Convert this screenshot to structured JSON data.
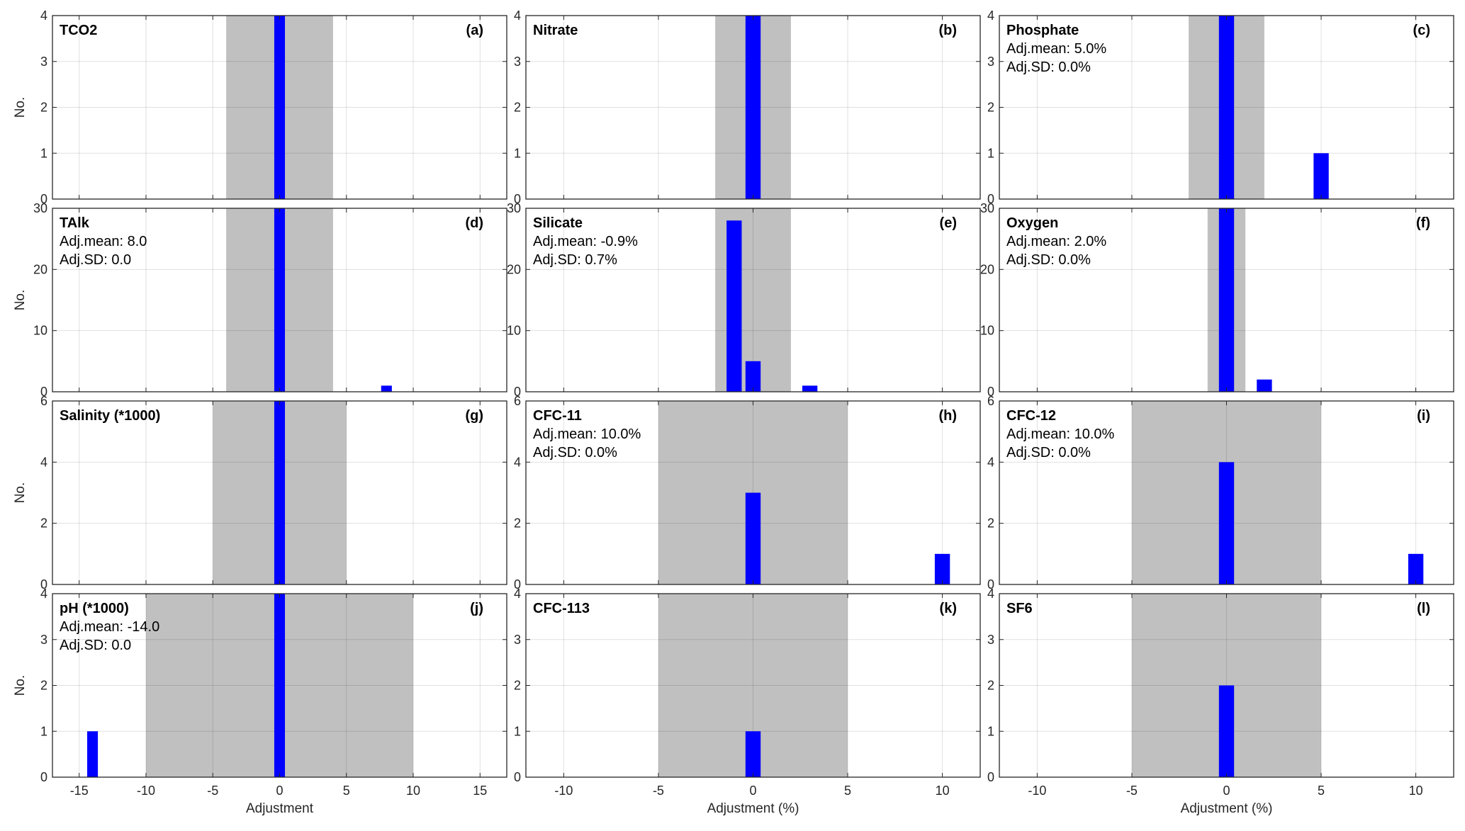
{
  "chart_data": [
    {
      "panel": "(a)",
      "title": "TCO2",
      "type": "bar",
      "xlim": [
        -17,
        17
      ],
      "xticks": [
        -15,
        -10,
        -5,
        0,
        5,
        10,
        15
      ],
      "ylim": [
        0,
        4
      ],
      "yticks": [
        0,
        1,
        2,
        3,
        4
      ],
      "ylabel": "No.",
      "xlabel": "",
      "band": [
        -4,
        4
      ],
      "bar_width": 0.8,
      "bar_color": "#0000ff",
      "band_color": "#c0c0c0",
      "x": [
        0
      ],
      "values": [
        4
      ],
      "annotations": [],
      "grid": true
    },
    {
      "panel": "(b)",
      "title": "Nitrate",
      "type": "bar",
      "xlim": [
        -12,
        12
      ],
      "xticks": [
        -10,
        -5,
        0,
        5,
        10
      ],
      "ylim": [
        0,
        4
      ],
      "yticks": [
        0,
        1,
        2,
        3,
        4
      ],
      "ylabel": "",
      "xlabel": "",
      "band": [
        -2,
        2
      ],
      "bar_width": 0.8,
      "bar_color": "#0000ff",
      "band_color": "#c0c0c0",
      "x": [
        0
      ],
      "values": [
        4
      ],
      "annotations": [],
      "grid": true
    },
    {
      "panel": "(c)",
      "title": "Phosphate",
      "type": "bar",
      "xlim": [
        -12,
        12
      ],
      "xticks": [
        -10,
        -5,
        0,
        5,
        10
      ],
      "ylim": [
        0,
        4
      ],
      "yticks": [
        0,
        1,
        2,
        3,
        4
      ],
      "ylabel": "",
      "xlabel": "",
      "band": [
        -2,
        2
      ],
      "bar_width": 0.8,
      "bar_color": "#0000ff",
      "band_color": "#c0c0c0",
      "x": [
        0,
        5
      ],
      "values": [
        4,
        1
      ],
      "annotations": [
        "Adj.mean: 5.0%",
        "Adj.SD: 0.0%"
      ],
      "grid": true
    },
    {
      "panel": "(d)",
      "title": "TAlk",
      "type": "bar",
      "xlim": [
        -17,
        17
      ],
      "xticks": [
        -15,
        -10,
        -5,
        0,
        5,
        10,
        15
      ],
      "ylim": [
        0,
        30
      ],
      "yticks": [
        0,
        10,
        20,
        30
      ],
      "ylabel": "No.",
      "xlabel": "",
      "band": [
        -4,
        4
      ],
      "bar_width": 0.8,
      "bar_color": "#0000ff",
      "band_color": "#c0c0c0",
      "x": [
        0,
        8
      ],
      "values": [
        30,
        1
      ],
      "annotations": [
        "Adj.mean: 8.0",
        "Adj.SD: 0.0"
      ],
      "grid": true
    },
    {
      "panel": "(e)",
      "title": "Silicate",
      "type": "bar",
      "xlim": [
        -12,
        12
      ],
      "xticks": [
        -10,
        -5,
        0,
        5,
        10
      ],
      "ylim": [
        0,
        30
      ],
      "yticks": [
        0,
        10,
        20,
        30
      ],
      "ylabel": "",
      "xlabel": "",
      "band": [
        -2,
        2
      ],
      "bar_width": 0.8,
      "bar_color": "#0000ff",
      "band_color": "#c0c0c0",
      "x": [
        -1,
        0,
        3
      ],
      "values": [
        28,
        5,
        1
      ],
      "annotations": [
        "Adj.mean: -0.9%",
        "Adj.SD: 0.7%"
      ],
      "grid": true
    },
    {
      "panel": "(f)",
      "title": "Oxygen",
      "type": "bar",
      "xlim": [
        -12,
        12
      ],
      "xticks": [
        -10,
        -5,
        0,
        5,
        10
      ],
      "ylim": [
        0,
        30
      ],
      "yticks": [
        0,
        10,
        20,
        30
      ],
      "ylabel": "",
      "xlabel": "",
      "band": [
        -1,
        1
      ],
      "bar_width": 0.8,
      "bar_color": "#0000ff",
      "band_color": "#c0c0c0",
      "x": [
        0,
        2
      ],
      "values": [
        30,
        2
      ],
      "annotations": [
        "Adj.mean: 2.0%",
        "Adj.SD: 0.0%"
      ],
      "grid": true
    },
    {
      "panel": "(g)",
      "title": "Salinity (*1000)",
      "type": "bar",
      "xlim": [
        -17,
        17
      ],
      "xticks": [
        -15,
        -10,
        -5,
        0,
        5,
        10,
        15
      ],
      "ylim": [
        0,
        6
      ],
      "yticks": [
        0,
        2,
        4,
        6
      ],
      "ylabel": "No.",
      "xlabel": "",
      "band": [
        -5,
        5
      ],
      "bar_width": 0.8,
      "bar_color": "#0000ff",
      "band_color": "#c0c0c0",
      "x": [
        0
      ],
      "values": [
        6
      ],
      "annotations": [],
      "grid": true
    },
    {
      "panel": "(h)",
      "title": "CFC-11",
      "type": "bar",
      "xlim": [
        -12,
        12
      ],
      "xticks": [
        -10,
        -5,
        0,
        5,
        10
      ],
      "ylim": [
        0,
        6
      ],
      "yticks": [
        0,
        2,
        4,
        6
      ],
      "ylabel": "",
      "xlabel": "",
      "band": [
        -5,
        5
      ],
      "bar_width": 0.8,
      "bar_color": "#0000ff",
      "band_color": "#c0c0c0",
      "x": [
        0,
        10
      ],
      "values": [
        3,
        1
      ],
      "annotations": [
        "Adj.mean: 10.0%",
        "Adj.SD: 0.0%"
      ],
      "grid": true
    },
    {
      "panel": "(i)",
      "title": "CFC-12",
      "type": "bar",
      "xlim": [
        -12,
        12
      ],
      "xticks": [
        -10,
        -5,
        0,
        5,
        10
      ],
      "ylim": [
        0,
        6
      ],
      "yticks": [
        0,
        2,
        4,
        6
      ],
      "ylabel": "",
      "xlabel": "",
      "band": [
        -5,
        5
      ],
      "bar_width": 0.8,
      "bar_color": "#0000ff",
      "band_color": "#c0c0c0",
      "x": [
        0,
        10
      ],
      "values": [
        4,
        1
      ],
      "annotations": [
        "Adj.mean: 10.0%",
        "Adj.SD: 0.0%"
      ],
      "grid": true
    },
    {
      "panel": "(j)",
      "title": "pH (*1000)",
      "type": "bar",
      "xlim": [
        -17,
        17
      ],
      "xticks": [
        -15,
        -10,
        -5,
        0,
        5,
        10,
        15
      ],
      "ylim": [
        0,
        4
      ],
      "yticks": [
        0,
        1,
        2,
        3,
        4
      ],
      "ylabel": "No.",
      "xlabel": "Adjustment",
      "band": [
        -10,
        10
      ],
      "bar_width": 0.8,
      "bar_color": "#0000ff",
      "band_color": "#c0c0c0",
      "x": [
        -14,
        0
      ],
      "values": [
        1,
        4
      ],
      "annotations": [
        "Adj.mean: -14.0",
        "Adj.SD: 0.0"
      ],
      "grid": true
    },
    {
      "panel": "(k)",
      "title": "CFC-113",
      "type": "bar",
      "xlim": [
        -12,
        12
      ],
      "xticks": [
        -10,
        -5,
        0,
        5,
        10
      ],
      "ylim": [
        0,
        4
      ],
      "yticks": [
        0,
        1,
        2,
        3,
        4
      ],
      "ylabel": "",
      "xlabel": "Adjustment (%)",
      "band": [
        -5,
        5
      ],
      "bar_width": 0.8,
      "bar_color": "#0000ff",
      "band_color": "#c0c0c0",
      "x": [
        0
      ],
      "values": [
        1
      ],
      "annotations": [],
      "grid": true
    },
    {
      "panel": "(l)",
      "title": "SF6",
      "type": "bar",
      "xlim": [
        -12,
        12
      ],
      "xticks": [
        -10,
        -5,
        0,
        5,
        10
      ],
      "ylim": [
        0,
        4
      ],
      "yticks": [
        0,
        1,
        2,
        3,
        4
      ],
      "ylabel": "",
      "xlabel": "Adjustment (%)",
      "band": [
        -5,
        5
      ],
      "bar_width": 0.8,
      "bar_color": "#0000ff",
      "band_color": "#c0c0c0",
      "x": [
        0
      ],
      "values": [
        2
      ],
      "annotations": [],
      "grid": true
    }
  ]
}
